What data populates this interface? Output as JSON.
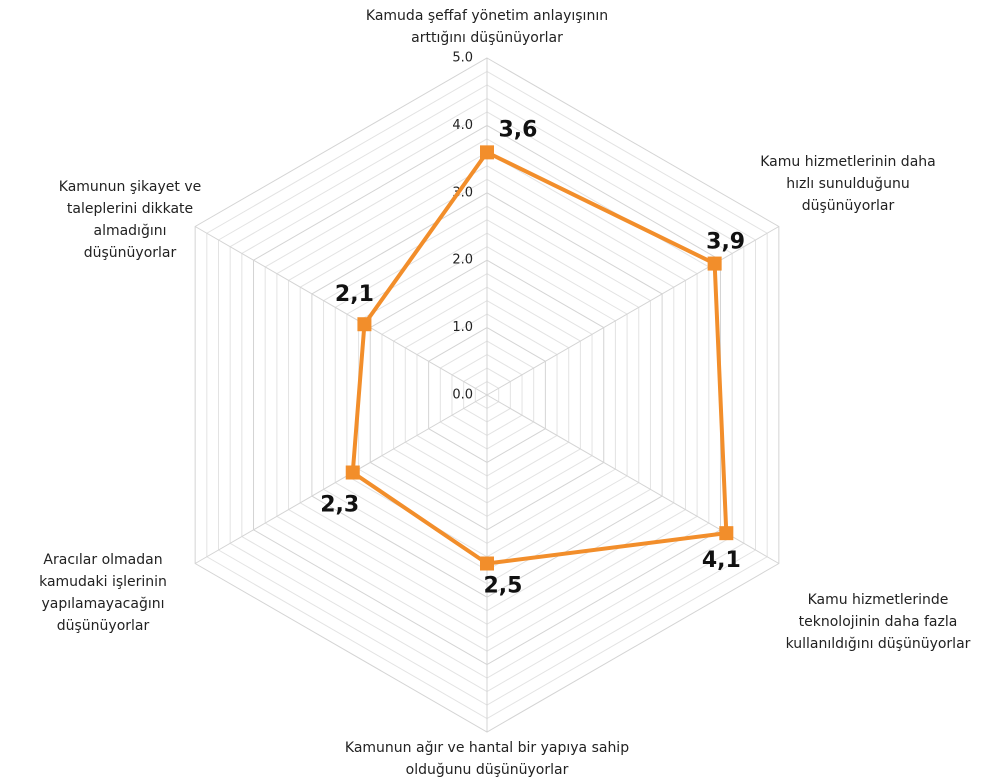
{
  "chart_data": {
    "type": "radar",
    "categories": [
      "Kamuda şeffaf yönetim anlayışının\narttığını düşünüyorlar",
      "Kamu hizmetlerinin daha\nhızlı sunulduğunu\ndüşünüyorlar",
      "Kamu hizmetlerinde\nteknolojinin daha fazla\nkullanıldığını düşünüyorlar",
      "Kamunun ağır ve hantal bir yapıya sahip\nolduğunu düşünüyorlar",
      "Aracılar olmadan\nkamudaki işlerinin\nyapılamayacağını\ndüşünüyorlar",
      "Kamunun şikayet ve\ntaleplerini dikkate\nalmadığını\ndüşünüyorlar"
    ],
    "values": [
      3.6,
      3.9,
      4.1,
      2.5,
      2.3,
      2.1
    ],
    "value_labels": [
      "3,6",
      "3,9",
      "4,1",
      "2,5",
      "2,3",
      "2,1"
    ],
    "color": "#f28e2b",
    "ylim": [
      0,
      5
    ],
    "yticks": [
      {
        "value": 0,
        "label": "0.0"
      },
      {
        "value": 1,
        "label": "1.0"
      },
      {
        "value": 2,
        "label": "2.0"
      },
      {
        "value": 3,
        "label": "3.0"
      },
      {
        "value": 4,
        "label": "4.0"
      },
      {
        "value": 5,
        "label": "5.0"
      }
    ],
    "minor_ticks": [
      0.2,
      0.4,
      0.6,
      0.8,
      1.2,
      1.4,
      1.6,
      1.8,
      2.2,
      2.4,
      2.6,
      2.8,
      3.2,
      3.4,
      3.6,
      3.8,
      4.2,
      4.4,
      4.6,
      4.8
    ],
    "grid": true
  }
}
